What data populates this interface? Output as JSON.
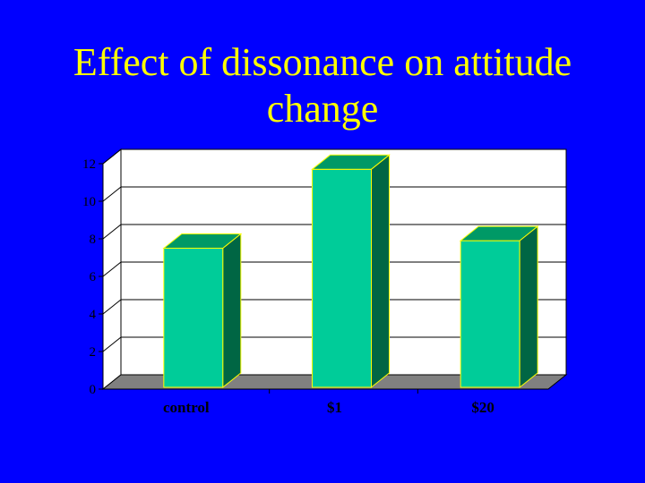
{
  "slide": {
    "title_line1": "Effect of dissonance on attitude",
    "title_line2": "change"
  },
  "colors": {
    "background": "#0000ff",
    "title": "#ffff00",
    "plot_area": "#ffffff",
    "floor": "#808080",
    "bar_front": "#00cc99",
    "bar_top": "#009966",
    "bar_side": "#006644",
    "bar_outline": "#ffff00"
  },
  "chart_data": {
    "type": "bar",
    "categories": [
      "control",
      "$1",
      "$20"
    ],
    "values": [
      7.5,
      11.7,
      7.9
    ],
    "title": "",
    "xlabel": "",
    "ylabel": "",
    "ylim": [
      0,
      12
    ],
    "yticks": [
      "0",
      "2",
      "4",
      "6",
      "8",
      "10",
      "12"
    ],
    "grid": true,
    "legend": "none",
    "style": "3d-column"
  }
}
